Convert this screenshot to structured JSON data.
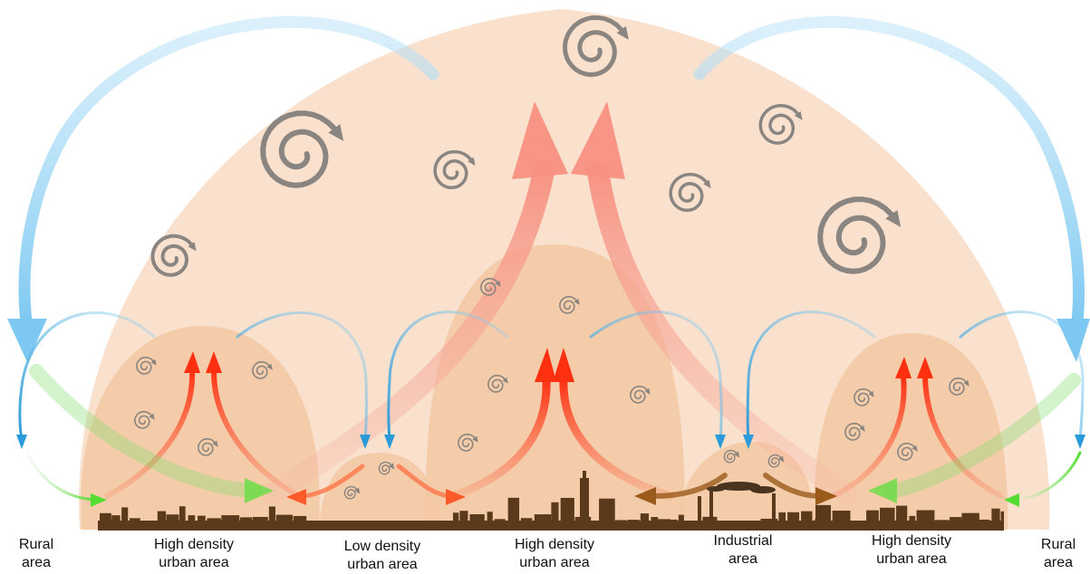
{
  "labels": {
    "rural_left": {
      "line1": "Rural",
      "line2": "area"
    },
    "hd_left": {
      "line1": "High density",
      "line2": "urban area"
    },
    "ld": {
      "line1": "Low density",
      "line2": "urban area"
    },
    "hd_center": {
      "line1": "High density",
      "line2": "urban area"
    },
    "industrial": {
      "line1": "Industrial",
      "line2": "area"
    },
    "hd_right": {
      "line1": "High density",
      "line2": "urban area"
    },
    "rural_right": {
      "line1": "Rural",
      "line2": "area"
    }
  },
  "colors": {
    "dome": "#f8dcc6",
    "local_dome": "#f2c8a0",
    "skyline": "#5a3a1a",
    "heat_arrow": "#ff3a1a",
    "rising_plume": "#f7a090",
    "cool_arrow": "#4aa8e0",
    "breeze_arrow": "#66dd44",
    "industrial_arrow": "#9a5a1a",
    "eddy": "#8a8580"
  }
}
